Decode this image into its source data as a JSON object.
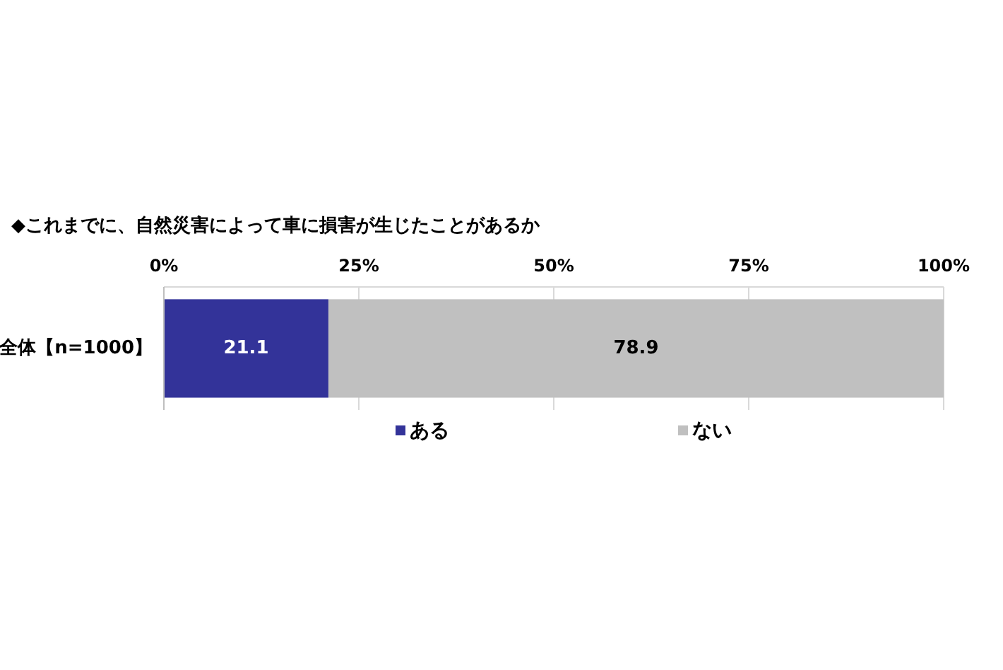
{
  "chart_data": {
    "type": "bar",
    "title": "◆これまでに、自然災害によって車に損害が生じたことがあるか",
    "categories": [
      "全体【n=1000】"
    ],
    "orientation": "horizontal",
    "stacked": true,
    "series": [
      {
        "name": "ある",
        "color": "#333399",
        "values": [
          21.1
        ]
      },
      {
        "name": "ない",
        "color": "#c0c0c0",
        "values": [
          78.9
        ]
      }
    ],
    "xlim": [
      0,
      100
    ],
    "xticks": [
      {
        "value": 0,
        "label": "0%"
      },
      {
        "value": 25,
        "label": "25%"
      },
      {
        "value": 50,
        "label": "50%"
      },
      {
        "value": 75,
        "label": "75%"
      },
      {
        "value": 100,
        "label": "100%"
      }
    ],
    "grid": "x",
    "legend": "bottom",
    "data_labels": true
  }
}
